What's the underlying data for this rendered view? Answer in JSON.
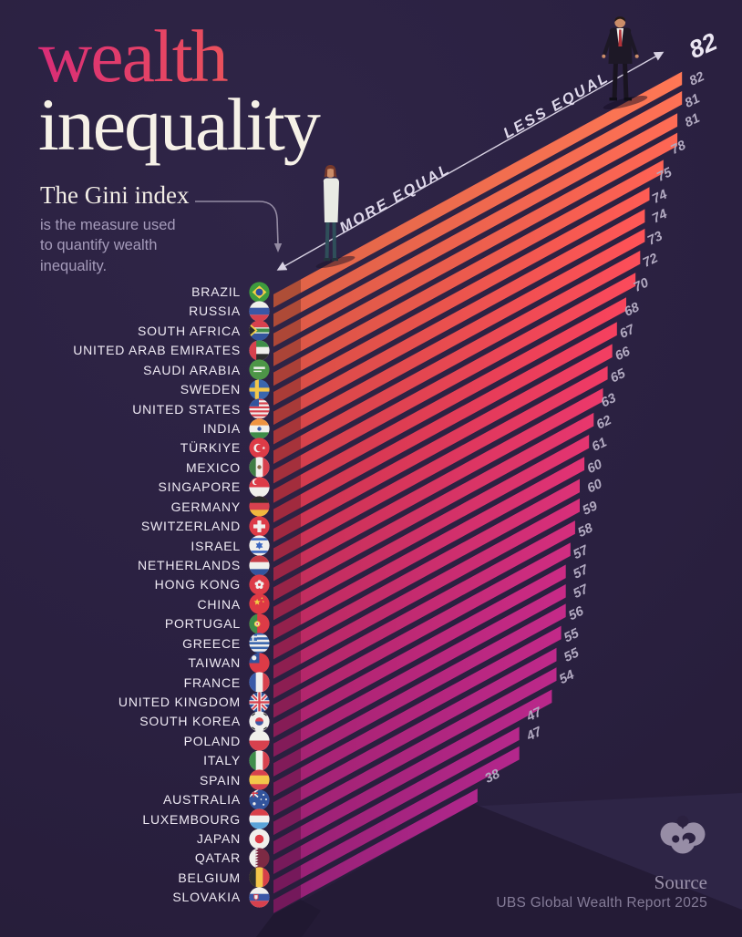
{
  "title": {
    "line1": "wealth",
    "line2": "inequality"
  },
  "callout": {
    "lead": "The Gini index",
    "body": "is the measure used\nto quantify wealth\ninequality."
  },
  "axis": {
    "more": "MORE EQUAL",
    "less": "LESS EQUAL"
  },
  "source": {
    "label": "Source",
    "value": "UBS Global Wealth Report 2025"
  },
  "colors": {
    "background": "#2b2140",
    "bar_top": "#f26c4d",
    "bar_bottom": "#a1237f",
    "title_gradient": [
      "#d92d77",
      "#ef6750"
    ],
    "value_label": "#b2aac1",
    "value_label_emphasis": "#ebe6f2",
    "country_label": "#efeaf4",
    "axis_line": "#d8d2e3",
    "muted_text": "#a59bba"
  },
  "chart_data": {
    "type": "bar",
    "title": "wealth inequality",
    "subtitle": "The Gini index is the measure used to quantify wealth inequality.",
    "orientation": "isometric-horizontal",
    "value_name": "Gini index",
    "value_range": [
      0,
      82
    ],
    "emphasized_value_index": 0,
    "axis_annotations": [
      "MORE EQUAL",
      "LESS EQUAL"
    ],
    "legend": "none",
    "grid": false,
    "categories": [
      "BRAZIL",
      "RUSSIA",
      "SOUTH AFRICA",
      "UNITED ARAB EMIRATES",
      "SAUDI ARABIA",
      "SWEDEN",
      "UNITED STATES",
      "INDIA",
      "TÜRKIYE",
      "MEXICO",
      "SINGAPORE",
      "GERMANY",
      "SWITZERLAND",
      "ISRAEL",
      "NETHERLANDS",
      "HONG KONG",
      "CHINA",
      "PORTUGAL",
      "GREECE",
      "TAIWAN",
      "FRANCE",
      "UNITED KINGDOM",
      "SOUTH KOREA",
      "POLAND",
      "ITALY",
      "SPAIN",
      "AUSTRALIA",
      "LUXEMBOURG",
      "JAPAN",
      "QATAR",
      "BELGIUM",
      "SLOVAKIA"
    ],
    "values": [
      82,
      82,
      81,
      81,
      78,
      75,
      74,
      74,
      73,
      72,
      70,
      68,
      67,
      66,
      65,
      63,
      62,
      61,
      60,
      60,
      59,
      58,
      57,
      57,
      57,
      56,
      55,
      55,
      54,
      47,
      47,
      38
    ],
    "flags": [
      [
        [
          "b",
          "#3e9b3e"
        ],
        [
          "p",
          [
            [
              12,
              4.5
            ],
            [
              20.2,
              12
            ],
            [
              12,
              19.5
            ],
            [
              3.8,
              12
            ]
          ],
          "#f2cf45"
        ],
        [
          "c",
          12,
          12,
          4.1,
          "#2c4e9f"
        ]
      ],
      [
        [
          "b",
          "#f0efec"
        ],
        [
          "h",
          8,
          8,
          "#3a57a6"
        ],
        [
          "h",
          16,
          8,
          "#d7414e"
        ]
      ],
      [
        [
          "b",
          "#3f8d49"
        ],
        [
          "h",
          0,
          8.6,
          "#d7414e"
        ],
        [
          "h",
          15.4,
          8.6,
          "#33549d"
        ],
        [
          "h",
          8.6,
          1.3,
          "#f0efec"
        ],
        [
          "h",
          14.1,
          1.3,
          "#f0efec"
        ],
        [
          "p",
          [
            [
              0,
              3
            ],
            [
              10,
              12
            ],
            [
              0,
              21
            ]
          ],
          "#f2cf45"
        ],
        [
          "p",
          [
            [
              0,
              5.5
            ],
            [
              7.2,
              12
            ],
            [
              0,
              18.5
            ]
          ],
          "#2b2b2b"
        ]
      ],
      [
        [
          "b",
          "#f0efec"
        ],
        [
          "h",
          0,
          8,
          "#3f8d49"
        ],
        [
          "h",
          16,
          8,
          "#2e2e2e"
        ],
        [
          "v",
          0,
          8.5,
          "#d7414e"
        ]
      ],
      [
        [
          "b",
          "#4d9647"
        ],
        [
          "r",
          5.5,
          8.8,
          13,
          2.6,
          "#f0efec"
        ],
        [
          "r",
          5.5,
          13.2,
          9,
          1.5,
          "#f0efec"
        ]
      ],
      [
        [
          "b",
          "#3a66ae"
        ],
        [
          "r",
          7,
          0,
          4.4,
          24,
          "#f3c64a"
        ],
        [
          "r",
          0,
          9.8,
          24,
          4.4,
          "#f3c64a"
        ]
      ],
      [
        [
          "b",
          "#f0efec"
        ],
        [
          "h",
          0,
          2.3,
          "#d7414e"
        ],
        [
          "h",
          4.6,
          2.3,
          "#d7414e"
        ],
        [
          "h",
          9.2,
          2.3,
          "#d7414e"
        ],
        [
          "h",
          13.8,
          2.3,
          "#d7414e"
        ],
        [
          "h",
          18.4,
          2.3,
          "#d7414e"
        ],
        [
          "h",
          22.5,
          1.5,
          "#d7414e"
        ],
        [
          "r",
          0,
          0,
          11.5,
          9.2,
          "#33549d"
        ]
      ],
      [
        [
          "b",
          "#f0efec"
        ],
        [
          "h",
          0,
          8,
          "#ef9442"
        ],
        [
          "h",
          16,
          8,
          "#3f8d49"
        ],
        [
          "c",
          12,
          12,
          2.3,
          "#3a5aa8"
        ]
      ],
      [
        [
          "b",
          "#dd3b47"
        ],
        [
          "c",
          10.5,
          12,
          4.9,
          "#f0efec"
        ],
        [
          "c",
          12.3,
          12,
          4,
          "#dd3b47"
        ],
        [
          "s",
          17,
          12,
          2.1,
          "#f0efec"
        ]
      ],
      [
        [
          "b",
          "#f0efec"
        ],
        [
          "v",
          0,
          8,
          "#3f7d45"
        ],
        [
          "v",
          16,
          8,
          "#d7414e"
        ],
        [
          "c",
          12,
          12,
          2.3,
          "#8a6b4b"
        ]
      ],
      [
        [
          "b",
          "#f0efec"
        ],
        [
          "h",
          0,
          12,
          "#dd3b47"
        ],
        [
          "c",
          7.5,
          6,
          3.5,
          "#f0efec"
        ],
        [
          "c",
          9.2,
          6,
          3,
          "#dd3b47"
        ]
      ],
      [
        [
          "b",
          "#d7414e"
        ],
        [
          "h",
          0,
          8,
          "#2b2b2b"
        ],
        [
          "h",
          16,
          8,
          "#f0b73e"
        ]
      ],
      [
        [
          "b",
          "#dd3b47"
        ],
        [
          "r",
          9.8,
          5.2,
          4.4,
          13.6,
          "#f0efec"
        ],
        [
          "r",
          5.2,
          9.8,
          13.6,
          4.4,
          "#f0efec"
        ]
      ],
      [
        [
          "b",
          "#f0efec"
        ],
        [
          "h",
          3.4,
          2.7,
          "#3a66c0"
        ],
        [
          "h",
          17.9,
          2.7,
          "#3a66c0"
        ],
        [
          "p",
          [
            [
              12,
              7.4
            ],
            [
              16,
              14.4
            ],
            [
              8,
              14.4
            ]
          ],
          "#3a66c0"
        ],
        [
          "p",
          [
            [
              12,
              16.6
            ],
            [
              8,
              9.6
            ],
            [
              16,
              9.6
            ]
          ],
          "#3a66c0"
        ]
      ],
      [
        [
          "b",
          "#f0efec"
        ],
        [
          "h",
          0,
          8,
          "#c53b47"
        ],
        [
          "h",
          16,
          8,
          "#33549d"
        ]
      ],
      [
        [
          "b",
          "#dd3b47"
        ],
        [
          "c",
          12,
          8.8,
          2.2,
          "#f0efec"
        ],
        [
          "c",
          15,
          10.9,
          2.2,
          "#f0efec"
        ],
        [
          "c",
          13.9,
          14.5,
          2.2,
          "#f0efec"
        ],
        [
          "c",
          10.1,
          14.5,
          2.2,
          "#f0efec"
        ],
        [
          "c",
          9,
          10.9,
          2.2,
          "#f0efec"
        ],
        [
          "c",
          12,
          12,
          1.6,
          "#dd3b47"
        ]
      ],
      [
        [
          "b",
          "#de3944"
        ],
        [
          "s",
          9.5,
          10,
          3.9,
          "#f2cf45"
        ],
        [
          "s",
          15,
          5.5,
          1.3,
          "#f2cf45"
        ],
        [
          "s",
          16.5,
          9.5,
          1.3,
          "#f2cf45"
        ]
      ],
      [
        [
          "b",
          "#dd3b47"
        ],
        [
          "v",
          0,
          9.6,
          "#3f8d49"
        ],
        [
          "c",
          9.6,
          12,
          3.4,
          "#f2cf45"
        ],
        [
          "c",
          9.6,
          12,
          1.9,
          "#f0efec"
        ],
        [
          "c",
          9.6,
          12,
          1.1,
          "#d7414e"
        ]
      ],
      [
        [
          "b",
          "#3a66ae"
        ],
        [
          "h",
          2.7,
          2.7,
          "#f0efec"
        ],
        [
          "h",
          8.1,
          2.7,
          "#f0efec"
        ],
        [
          "h",
          13.5,
          2.7,
          "#f0efec"
        ],
        [
          "h",
          18.9,
          2.7,
          "#f0efec"
        ],
        [
          "r",
          0,
          0,
          9.4,
          9.4,
          "#3a66ae"
        ],
        [
          "r",
          3.8,
          0,
          1.9,
          9.4,
          "#f0efec"
        ],
        [
          "r",
          0,
          3.8,
          9.4,
          1.9,
          "#f0efec"
        ]
      ],
      [
        [
          "b",
          "#dd3b47"
        ],
        [
          "r",
          0,
          0,
          12,
          12,
          "#33549d"
        ],
        [
          "c",
          6,
          6,
          2.7,
          "#f0efec"
        ]
      ],
      [
        [
          "b",
          "#f0efec"
        ],
        [
          "v",
          0,
          8,
          "#3a5aa8"
        ],
        [
          "v",
          16,
          8,
          "#d7414e"
        ]
      ],
      [
        [
          "b",
          "#33549d"
        ],
        [
          "l",
          0,
          0,
          24,
          24,
          4.6,
          "#f0efec"
        ],
        [
          "l",
          24,
          0,
          0,
          24,
          4.6,
          "#f0efec"
        ],
        [
          "l",
          0,
          0,
          24,
          24,
          1.9,
          "#d7414e"
        ],
        [
          "l",
          24,
          0,
          0,
          24,
          1.9,
          "#d7414e"
        ],
        [
          "r",
          9.6,
          0,
          4.8,
          24,
          "#f0efec"
        ],
        [
          "r",
          0,
          9.6,
          24,
          4.8,
          "#f0efec"
        ],
        [
          "r",
          10.8,
          0,
          2.4,
          24,
          "#d7414e"
        ],
        [
          "r",
          0,
          10.8,
          24,
          2.4,
          "#d7414e"
        ]
      ],
      [
        [
          "b",
          "#f0efec"
        ],
        [
          "c",
          12,
          12,
          4.6,
          "#d7414e"
        ],
        [
          "p",
          [
            [
              7.4,
              12
            ],
            [
              16.6,
              12
            ],
            [
              16,
              14.4
            ],
            [
              14.2,
              16
            ],
            [
              12,
              16.6
            ],
            [
              9.8,
              16
            ],
            [
              8,
              14.4
            ]
          ],
          "#3a5aa8"
        ],
        [
          "l",
          3.6,
          5.4,
          7,
          2.9,
          1.3,
          "#2e2e2e"
        ],
        [
          "l",
          17,
          2.9,
          20.4,
          5.4,
          1.3,
          "#2e2e2e"
        ],
        [
          "l",
          3.6,
          18.6,
          7,
          21.1,
          1.3,
          "#2e2e2e"
        ],
        [
          "l",
          17,
          21.1,
          20.4,
          18.6,
          1.3,
          "#2e2e2e"
        ]
      ],
      [
        [
          "b",
          "#f0efec"
        ],
        [
          "h",
          12,
          12,
          "#d7414e"
        ]
      ],
      [
        [
          "b",
          "#f0efec"
        ],
        [
          "v",
          0,
          8,
          "#3f8d4c"
        ],
        [
          "v",
          16,
          8,
          "#d7414e"
        ]
      ],
      [
        [
          "b",
          "#f3c64a"
        ],
        [
          "h",
          0,
          7,
          "#d7414e"
        ],
        [
          "h",
          17,
          7,
          "#d7414e"
        ]
      ],
      [
        [
          "b",
          "#33549d"
        ],
        [
          "l",
          0,
          0,
          10.5,
          8.8,
          1.8,
          "#f0efec"
        ],
        [
          "l",
          10.5,
          0,
          0,
          8.8,
          1.8,
          "#f0efec"
        ],
        [
          "r",
          4.6,
          0,
          1.6,
          8.8,
          "#d7414e"
        ],
        [
          "r",
          0,
          3.6,
          10.5,
          1.6,
          "#d7414e"
        ],
        [
          "c",
          6.2,
          16.5,
          1.7,
          "#f0efec"
        ],
        [
          "c",
          16.8,
          6.2,
          1.1,
          "#f0efec"
        ],
        [
          "c",
          19.8,
          11.5,
          1.1,
          "#f0efec"
        ],
        [
          "c",
          16.8,
          17.5,
          1.1,
          "#f0efec"
        ],
        [
          "c",
          14,
          11.5,
          0.9,
          "#f0efec"
        ]
      ],
      [
        [
          "b",
          "#f0efec"
        ],
        [
          "h",
          0,
          8,
          "#d94049"
        ],
        [
          "h",
          16,
          8,
          "#5ba4d9"
        ]
      ],
      [
        [
          "b",
          "#f0efec"
        ],
        [
          "c",
          12,
          12,
          5,
          "#dd3b47"
        ]
      ],
      [
        [
          "b",
          "#7d2a44"
        ],
        [
          "v",
          0,
          7.5,
          "#f0efec"
        ],
        [
          "p",
          [
            [
              7.5,
              0
            ],
            [
              11,
              1.6
            ],
            [
              7.5,
              3.2
            ]
          ],
          "#f0efec"
        ],
        [
          "p",
          [
            [
              7.5,
              3.2
            ],
            [
              11,
              4.8
            ],
            [
              7.5,
              6.4
            ]
          ],
          "#f0efec"
        ],
        [
          "p",
          [
            [
              7.5,
              6.4
            ],
            [
              11,
              8
            ],
            [
              7.5,
              9.6
            ]
          ],
          "#f0efec"
        ],
        [
          "p",
          [
            [
              7.5,
              9.6
            ],
            [
              11,
              11.2
            ],
            [
              7.5,
              12.8
            ]
          ],
          "#f0efec"
        ],
        [
          "p",
          [
            [
              7.5,
              12.8
            ],
            [
              11,
              14.4
            ],
            [
              7.5,
              16
            ]
          ],
          "#f0efec"
        ],
        [
          "p",
          [
            [
              7.5,
              16
            ],
            [
              11,
              17.6
            ],
            [
              7.5,
              19.2
            ]
          ],
          "#f0efec"
        ],
        [
          "p",
          [
            [
              7.5,
              19.2
            ],
            [
              11,
              20.8
            ],
            [
              7.5,
              22.4
            ]
          ],
          "#f0efec"
        ],
        [
          "p",
          [
            [
              7.5,
              22.4
            ],
            [
              11,
              24
            ],
            [
              7.5,
              24
            ]
          ],
          "#f0efec"
        ]
      ],
      [
        [
          "b",
          "#f3c64a"
        ],
        [
          "v",
          0,
          8,
          "#2e2e2e"
        ],
        [
          "v",
          16,
          8,
          "#d6404a"
        ]
      ],
      [
        [
          "b",
          "#f0efec"
        ],
        [
          "h",
          8,
          8,
          "#3a57a6"
        ],
        [
          "h",
          16,
          8,
          "#d7414e"
        ],
        [
          "p",
          [
            [
              5.5,
              8.5
            ],
            [
              11,
              8.5
            ],
            [
              11,
              13.5
            ],
            [
              8.25,
              15.5
            ],
            [
              5.5,
              13.5
            ]
          ],
          "#d7414e"
        ],
        [
          "p",
          [
            [
              6.5,
              9.5
            ],
            [
              10,
              9.5
            ],
            [
              10,
              13
            ],
            [
              8.25,
              14.3
            ],
            [
              6.5,
              13
            ]
          ],
          "#f0efec"
        ]
      ]
    ]
  }
}
